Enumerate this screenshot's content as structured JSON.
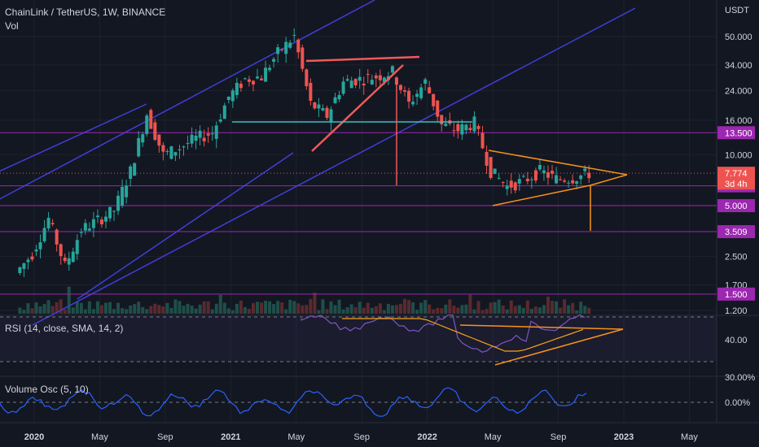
{
  "header": {
    "symbol": "ChainLink / TetherUS, 1W, BINANCE",
    "volume_label": "Vol",
    "rsi_label": "RSI (14, close, SMA, 14, 2)",
    "vosc_label": "Volume Osc (5, 10)"
  },
  "colors": {
    "background": "#131722",
    "up": "#26a69a",
    "down": "#ef5350",
    "channel": "#3f3fd6",
    "level": "#9c27b0",
    "triangle": "#f7931a",
    "pattern": "#f05a5a",
    "rsi": "#7e57c2",
    "rsi_ma": "#f7a21b",
    "vosc": "#2962ff"
  },
  "chart_data": [
    {
      "type": "candlestick",
      "title": "ChainLink / TetherUS, 1W, BINANCE",
      "y_axis_label": "USDT",
      "y_scale": "log",
      "y_ticks": [
        "50.000",
        "34.000",
        "24.000",
        "16.000",
        "10.000",
        "2.500",
        "1.700",
        "1.200"
      ],
      "x_ticks": [
        "2020",
        "May",
        "Sep",
        "2021",
        "May",
        "Sep",
        "2022",
        "May",
        "Sep",
        "2023",
        "May"
      ],
      "last_price": "7.774",
      "countdown": "3d 4h",
      "horizontal_levels": [
        "13.500",
        "6.550",
        "5.000",
        "3.509",
        "1.500"
      ],
      "price_path": [
        [
          "2019-12",
          2.0
        ],
        [
          "2020-01",
          2.6
        ],
        [
          "2020-02",
          4.2
        ],
        [
          "2020-03",
          2.2
        ],
        [
          "2020-04",
          3.6
        ],
        [
          "2020-05",
          4.1
        ],
        [
          "2020-06",
          4.7
        ],
        [
          "2020-07",
          8.0
        ],
        [
          "2020-08",
          17.5
        ],
        [
          "2020-09",
          10.0
        ],
        [
          "2020-10",
          11.0
        ],
        [
          "2020-11",
          12.5
        ],
        [
          "2020-12",
          13.5
        ],
        [
          "2021-01",
          22.0
        ],
        [
          "2021-02",
          28.0
        ],
        [
          "2021-03",
          29.0
        ],
        [
          "2021-04",
          40.0
        ],
        [
          "2021-05",
          50.0
        ],
        [
          "2021-06",
          20.0
        ],
        [
          "2021-07",
          17.0
        ],
        [
          "2021-08",
          27.0
        ],
        [
          "2021-09",
          28.0
        ],
        [
          "2021-10",
          29.0
        ],
        [
          "2021-11",
          31.0
        ],
        [
          "2021-12",
          20.0
        ],
        [
          "2022-01",
          27.0
        ],
        [
          "2022-02",
          15.0
        ],
        [
          "2022-03",
          14.0
        ],
        [
          "2022-04",
          15.5
        ],
        [
          "2022-05",
          8.0
        ],
        [
          "2022-06",
          6.5
        ],
        [
          "2022-07",
          7.0
        ],
        [
          "2022-08",
          8.0
        ],
        [
          "2022-09",
          7.2
        ],
        [
          "2022-10",
          7.3
        ],
        [
          "2022-11",
          7.774
        ]
      ],
      "notes": "Weekly candlesticks with ascending parallel channel, symmetrical triangle and horizontal support/resistance levels"
    },
    {
      "type": "line",
      "title": "RSI (14, close, SMA, 14, 2)",
      "y_ticks": [
        "40.00"
      ],
      "series": [
        {
          "name": "RSI"
        },
        {
          "name": "MA"
        }
      ]
    },
    {
      "type": "line",
      "title": "Volume Osc (5, 10)",
      "y_ticks": [
        "30.00%",
        "0.00%"
      ]
    }
  ]
}
